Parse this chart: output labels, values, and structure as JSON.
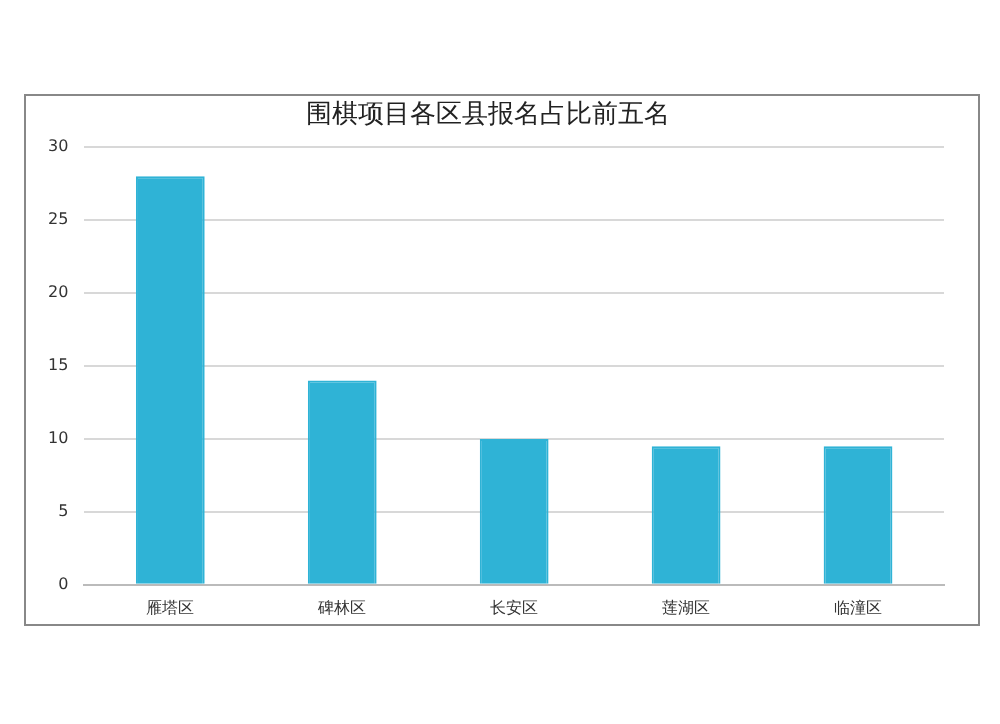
{
  "chart_data": {
    "type": "bar",
    "title": "围棋项目各区县报名占比前五名",
    "categories": [
      "雁塔区",
      "碑林区",
      "长安区",
      "莲湖区",
      "临潼区"
    ],
    "values": [
      28,
      14,
      10,
      9.5,
      9.5
    ],
    "color": "#2fb3d6",
    "ylim": [
      0,
      30
    ],
    "yticks": [
      0,
      5,
      10,
      15,
      20,
      25,
      30
    ],
    "grid": "y"
  }
}
